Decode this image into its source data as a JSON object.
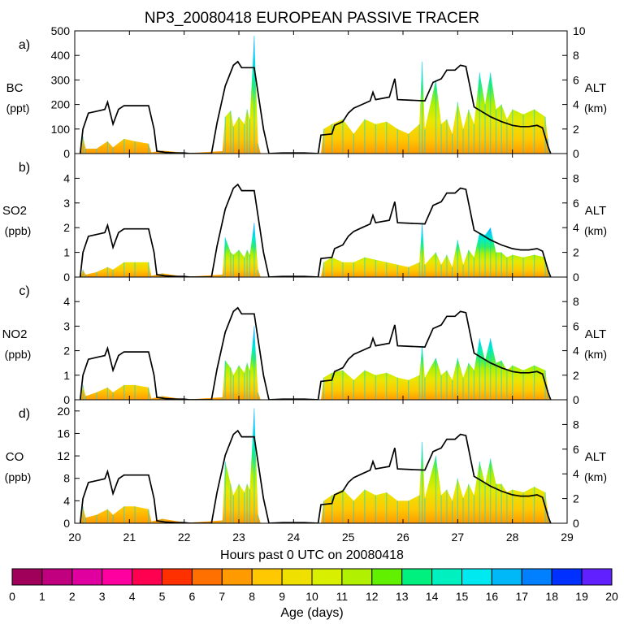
{
  "title": "NP3_20080418 EUROPEAN PASSIVE TRACER",
  "chart_data": [
    {
      "type": "area",
      "panel_label": "a)",
      "species": "BC",
      "unit": "(ppt)",
      "ylim": [
        0,
        500
      ],
      "yticks": [
        "0",
        "100",
        "200",
        "300",
        "400",
        "500"
      ],
      "total_peak": [
        [
          20.1,
          0
        ],
        [
          20.15,
          70
        ],
        [
          20.2,
          20
        ],
        [
          20.4,
          20
        ],
        [
          20.6,
          50
        ],
        [
          20.7,
          25
        ],
        [
          20.9,
          60
        ],
        [
          21.1,
          50
        ],
        [
          21.35,
          40
        ],
        [
          21.4,
          5
        ],
        [
          21.6,
          12
        ],
        [
          21.9,
          6
        ],
        [
          22.1,
          2
        ],
        [
          22.7,
          10
        ],
        [
          22.75,
          150
        ],
        [
          22.85,
          175
        ],
        [
          22.9,
          110
        ],
        [
          23.0,
          150
        ],
        [
          23.1,
          120
        ],
        [
          23.15,
          180
        ],
        [
          23.2,
          140
        ],
        [
          23.28,
          480
        ],
        [
          23.35,
          40
        ],
        [
          23.4,
          0
        ],
        [
          24.5,
          0
        ],
        [
          24.55,
          100
        ],
        [
          24.7,
          120
        ],
        [
          24.9,
          140
        ],
        [
          25.1,
          80
        ],
        [
          25.3,
          140
        ],
        [
          25.5,
          120
        ],
        [
          25.7,
          130
        ],
        [
          25.9,
          100
        ],
        [
          26.1,
          80
        ],
        [
          26.3,
          120
        ],
        [
          26.35,
          375
        ],
        [
          26.4,
          100
        ],
        [
          26.6,
          300
        ],
        [
          26.7,
          120
        ],
        [
          26.8,
          140
        ],
        [
          26.9,
          80
        ],
        [
          27.0,
          210
        ],
        [
          27.1,
          100
        ],
        [
          27.2,
          180
        ],
        [
          27.3,
          120
        ],
        [
          27.4,
          330
        ],
        [
          27.5,
          200
        ],
        [
          27.6,
          330
        ],
        [
          27.7,
          180
        ],
        [
          27.8,
          200
        ],
        [
          27.9,
          140
        ],
        [
          28.0,
          180
        ],
        [
          28.2,
          160
        ],
        [
          28.4,
          180
        ],
        [
          28.6,
          150
        ],
        [
          28.65,
          60
        ],
        [
          28.68,
          0
        ]
      ]
    },
    {
      "type": "area",
      "panel_label": "b)",
      "species": "SO2",
      "unit": "(ppb)",
      "ylim": [
        0,
        5
      ],
      "yticks": [
        "0",
        "1",
        "2",
        "3",
        "4"
      ],
      "total_peak": [
        [
          20.1,
          0
        ],
        [
          20.15,
          0.3
        ],
        [
          20.2,
          0.1
        ],
        [
          20.4,
          0.2
        ],
        [
          20.6,
          0.4
        ],
        [
          20.7,
          0.3
        ],
        [
          20.9,
          0.6
        ],
        [
          21.1,
          0.6
        ],
        [
          21.35,
          0.6
        ],
        [
          21.4,
          0.05
        ],
        [
          21.6,
          0.15
        ],
        [
          21.9,
          0.05
        ],
        [
          22.1,
          0.02
        ],
        [
          22.7,
          0.1
        ],
        [
          22.75,
          1.6
        ],
        [
          22.85,
          1.0
        ],
        [
          22.9,
          0.9
        ],
        [
          23.0,
          1.1
        ],
        [
          23.1,
          0.8
        ],
        [
          23.15,
          1.1
        ],
        [
          23.2,
          0.9
        ],
        [
          23.28,
          2.2
        ],
        [
          23.35,
          0.3
        ],
        [
          23.4,
          0
        ],
        [
          24.5,
          0
        ],
        [
          24.55,
          0.6
        ],
        [
          24.7,
          0.8
        ],
        [
          24.9,
          0.6
        ],
        [
          25.1,
          0.6
        ],
        [
          25.3,
          0.8
        ],
        [
          25.5,
          0.7
        ],
        [
          25.7,
          0.6
        ],
        [
          25.9,
          0.5
        ],
        [
          26.1,
          0.4
        ],
        [
          26.3,
          0.6
        ],
        [
          26.35,
          2.2
        ],
        [
          26.4,
          0.5
        ],
        [
          26.6,
          1.0
        ],
        [
          26.7,
          0.5
        ],
        [
          26.8,
          0.9
        ],
        [
          26.9,
          0.4
        ],
        [
          27.0,
          1.5
        ],
        [
          27.1,
          0.5
        ],
        [
          27.2,
          1.1
        ],
        [
          27.3,
          0.8
        ],
        [
          27.4,
          1.8
        ],
        [
          27.5,
          1.7
        ],
        [
          27.6,
          2.0
        ],
        [
          27.7,
          1.0
        ],
        [
          27.8,
          1.0
        ],
        [
          27.9,
          0.8
        ],
        [
          28.0,
          0.9
        ],
        [
          28.2,
          0.8
        ],
        [
          28.4,
          0.9
        ],
        [
          28.6,
          0.8
        ],
        [
          28.65,
          0.3
        ],
        [
          28.68,
          0
        ]
      ]
    },
    {
      "type": "area",
      "panel_label": "c)",
      "species": "NO2",
      "unit": "(ppb)",
      "ylim": [
        0,
        5
      ],
      "yticks": [
        "0",
        "1",
        "2",
        "3",
        "4"
      ],
      "total_peak": [
        [
          20.1,
          0
        ],
        [
          20.15,
          0.6
        ],
        [
          20.2,
          0.15
        ],
        [
          20.4,
          0.3
        ],
        [
          20.6,
          0.5
        ],
        [
          20.7,
          0.3
        ],
        [
          20.9,
          0.6
        ],
        [
          21.1,
          0.6
        ],
        [
          21.35,
          0.5
        ],
        [
          21.4,
          0.05
        ],
        [
          21.6,
          0.15
        ],
        [
          21.9,
          0.05
        ],
        [
          22.1,
          0.02
        ],
        [
          22.7,
          0.1
        ],
        [
          22.75,
          1.6
        ],
        [
          22.85,
          1.3
        ],
        [
          22.9,
          1.0
        ],
        [
          23.0,
          1.4
        ],
        [
          23.1,
          1.1
        ],
        [
          23.15,
          1.5
        ],
        [
          23.2,
          1.2
        ],
        [
          23.28,
          3.0
        ],
        [
          23.35,
          0.3
        ],
        [
          23.4,
          0
        ],
        [
          24.5,
          0
        ],
        [
          24.55,
          0.9
        ],
        [
          24.7,
          1.1
        ],
        [
          24.9,
          1.2
        ],
        [
          25.1,
          0.8
        ],
        [
          25.3,
          1.2
        ],
        [
          25.5,
          1.0
        ],
        [
          25.7,
          1.1
        ],
        [
          25.9,
          0.9
        ],
        [
          26.1,
          0.8
        ],
        [
          26.3,
          1.0
        ],
        [
          26.35,
          2.2
        ],
        [
          26.4,
          0.9
        ],
        [
          26.6,
          1.7
        ],
        [
          26.7,
          1.0
        ],
        [
          26.8,
          1.2
        ],
        [
          26.9,
          0.8
        ],
        [
          27.0,
          1.7
        ],
        [
          27.1,
          0.9
        ],
        [
          27.2,
          1.5
        ],
        [
          27.3,
          1.2
        ],
        [
          27.4,
          2.5
        ],
        [
          27.5,
          1.6
        ],
        [
          27.6,
          2.5
        ],
        [
          27.7,
          1.5
        ],
        [
          27.8,
          1.6
        ],
        [
          27.9,
          1.2
        ],
        [
          28.0,
          1.4
        ],
        [
          28.2,
          1.2
        ],
        [
          28.4,
          1.4
        ],
        [
          28.6,
          1.2
        ],
        [
          28.65,
          0.4
        ],
        [
          28.68,
          0
        ]
      ]
    },
    {
      "type": "area",
      "panel_label": "d)",
      "species": "CO",
      "unit": "(ppb)",
      "ylim": [
        0,
        22
      ],
      "yticks": [
        "0",
        "4",
        "8",
        "12",
        "16",
        "20"
      ],
      "total_peak": [
        [
          20.1,
          0
        ],
        [
          20.15,
          3
        ],
        [
          20.2,
          1
        ],
        [
          20.4,
          1.5
        ],
        [
          20.6,
          2.5
        ],
        [
          20.7,
          1.5
        ],
        [
          20.9,
          3
        ],
        [
          21.1,
          3
        ],
        [
          21.35,
          2.5
        ],
        [
          21.4,
          0.3
        ],
        [
          21.6,
          0.8
        ],
        [
          21.9,
          0.3
        ],
        [
          22.1,
          0.1
        ],
        [
          22.7,
          0.5
        ],
        [
          22.75,
          11
        ],
        [
          22.85,
          7
        ],
        [
          22.9,
          5
        ],
        [
          23.0,
          7
        ],
        [
          23.1,
          5.5
        ],
        [
          23.15,
          7
        ],
        [
          23.2,
          6
        ],
        [
          23.28,
          20.5
        ],
        [
          23.35,
          1.5
        ],
        [
          23.4,
          0
        ],
        [
          24.5,
          0
        ],
        [
          24.55,
          4
        ],
        [
          24.7,
          5
        ],
        [
          24.9,
          6
        ],
        [
          25.1,
          4
        ],
        [
          25.3,
          6
        ],
        [
          25.5,
          5
        ],
        [
          25.7,
          5.5
        ],
        [
          25.9,
          4
        ],
        [
          26.1,
          4
        ],
        [
          26.3,
          5
        ],
        [
          26.35,
          14.5
        ],
        [
          26.4,
          4.5
        ],
        [
          26.6,
          12
        ],
        [
          26.7,
          5
        ],
        [
          26.8,
          6
        ],
        [
          26.9,
          4
        ],
        [
          27.0,
          8
        ],
        [
          27.1,
          4.5
        ],
        [
          27.2,
          7
        ],
        [
          27.3,
          5
        ],
        [
          27.4,
          11
        ],
        [
          27.5,
          7
        ],
        [
          27.6,
          11.5
        ],
        [
          27.7,
          7
        ],
        [
          27.8,
          7
        ],
        [
          27.9,
          5.5
        ],
        [
          28.0,
          6
        ],
        [
          28.2,
          5.5
        ],
        [
          28.4,
          6.5
        ],
        [
          28.6,
          5.5
        ],
        [
          28.65,
          2
        ],
        [
          28.68,
          0
        ]
      ]
    }
  ],
  "altitude": {
    "label": "ALT",
    "unit": "(km)",
    "ylim": [
      0,
      10
    ],
    "ticks": [
      "0",
      "2",
      "4",
      "6",
      "8"
    ],
    "ticks_top_panel": [
      "0",
      "2",
      "4",
      "6",
      "8",
      "10"
    ],
    "profile_km": [
      [
        20.1,
        0
      ],
      [
        20.15,
        2.0
      ],
      [
        20.25,
        3.3
      ],
      [
        20.45,
        3.5
      ],
      [
        20.55,
        3.6
      ],
      [
        20.6,
        4.2
      ],
      [
        20.7,
        2.4
      ],
      [
        20.8,
        3.6
      ],
      [
        20.9,
        3.9
      ],
      [
        21.35,
        3.9
      ],
      [
        21.45,
        2.0
      ],
      [
        21.5,
        0.2
      ],
      [
        21.65,
        0.1
      ],
      [
        21.85,
        0.05
      ],
      [
        22.0,
        0.05
      ],
      [
        22.1,
        0.0
      ],
      [
        22.5,
        0.0
      ],
      [
        22.6,
        2.5
      ],
      [
        22.75,
        5.5
      ],
      [
        22.9,
        7.2
      ],
      [
        22.98,
        7.5
      ],
      [
        23.05,
        7.0
      ],
      [
        23.28,
        7.0
      ],
      [
        23.45,
        2.0
      ],
      [
        23.55,
        0.0
      ],
      [
        23.8,
        0.05
      ],
      [
        24.2,
        0.05
      ],
      [
        24.45,
        0.0
      ],
      [
        24.5,
        1.5
      ],
      [
        24.7,
        1.6
      ],
      [
        24.75,
        2.3
      ],
      [
        24.9,
        2.6
      ],
      [
        25.0,
        3.3
      ],
      [
        25.1,
        3.7
      ],
      [
        25.25,
        4.0
      ],
      [
        25.4,
        4.3
      ],
      [
        25.45,
        5.0
      ],
      [
        25.5,
        4.4
      ],
      [
        25.75,
        4.6
      ],
      [
        25.85,
        6.1
      ],
      [
        25.9,
        4.4
      ],
      [
        26.4,
        4.3
      ],
      [
        26.55,
        5.8
      ],
      [
        26.7,
        6.1
      ],
      [
        26.8,
        6.8
      ],
      [
        26.95,
        6.8
      ],
      [
        27.05,
        7.2
      ],
      [
        27.15,
        7.1
      ],
      [
        27.3,
        3.8
      ],
      [
        27.45,
        3.4
      ],
      [
        27.6,
        3.0
      ],
      [
        27.8,
        2.6
      ],
      [
        28.0,
        2.3
      ],
      [
        28.15,
        2.2
      ],
      [
        28.3,
        2.2
      ],
      [
        28.45,
        2.3
      ],
      [
        28.55,
        2.1
      ],
      [
        28.65,
        0.6
      ],
      [
        28.7,
        0.0
      ]
    ]
  },
  "xaxis": {
    "label": "Hours past 0 UTC on 20080418",
    "range": [
      20,
      29
    ],
    "ticks": [
      "20",
      "21",
      "22",
      "23",
      "24",
      "25",
      "26",
      "27",
      "28",
      "29"
    ]
  },
  "colorbar": {
    "label": "Age (days)",
    "ticks": [
      "0",
      "1",
      "2",
      "3",
      "4",
      "5",
      "6",
      "7",
      "8",
      "9",
      "10",
      "11",
      "12",
      "13",
      "14",
      "15",
      "16",
      "17",
      "18",
      "19",
      "20"
    ],
    "colors": [
      "#a0005a",
      "#c0007e",
      "#e000a0",
      "#ff00a0",
      "#ff0050",
      "#ff3000",
      "#ff7000",
      "#ff9a00",
      "#ffc800",
      "#f0e000",
      "#d8f000",
      "#b0f000",
      "#60f000",
      "#00f080",
      "#00f0c0",
      "#00e8f0",
      "#00b8f8",
      "#0080ff",
      "#0030ff",
      "#6020ff"
    ]
  }
}
